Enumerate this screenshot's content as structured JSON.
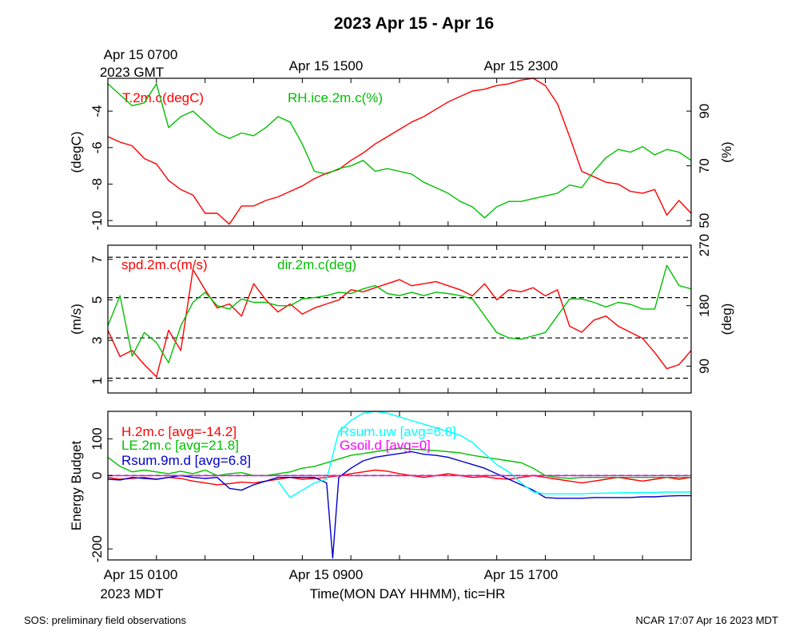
{
  "title": "2023 Apr 15 - Apr 16",
  "top_axis": {
    "ticks": [
      "Apr 15 0700",
      "Apr 15 1500",
      "Apr 15 2300"
    ],
    "timezone": "2023 GMT"
  },
  "bottom_axis": {
    "ticks": [
      "Apr 15 0100",
      "Apr 15 0900",
      "Apr 15 1700"
    ],
    "timezone": "2023 MDT",
    "label": "Time(MON DAY HHMM), tic=HR"
  },
  "footer": {
    "left": "SOS: preliminary field observations",
    "right": "NCAR 17:07 Apr 16 2023 MDT"
  },
  "colors": {
    "red": "#ff0000",
    "green": "#00c000",
    "blue": "#0000cc",
    "cyan": "#00ffff",
    "magenta": "#ff00ff"
  },
  "chart_data": [
    {
      "type": "line",
      "x_range_hours_mdt": [
        0,
        24
      ],
      "left_axis": {
        "label": "(degC)",
        "range": [
          -10.3,
          -2.2
        ],
        "ticks": [
          -10,
          -8,
          -6,
          -4
        ]
      },
      "right_axis": {
        "label": "(%)",
        "range": [
          48,
          102
        ],
        "ticks": [
          50,
          70,
          90
        ]
      },
      "series": [
        {
          "name": "T.2m.c(degC)",
          "color": "#ff0000",
          "axis": "left",
          "x": [
            0,
            0.5,
            1,
            1.5,
            2,
            2.5,
            3,
            3.5,
            4,
            4.5,
            5,
            5.5,
            6,
            6.5,
            7,
            7.5,
            8,
            8.5,
            9,
            9.5,
            10,
            10.5,
            11,
            11.5,
            12,
            12.5,
            13,
            13.5,
            14,
            14.5,
            15,
            15.5,
            16,
            16.5,
            17,
            17.5,
            18,
            18.5,
            19,
            19.5,
            20,
            20.5,
            21,
            21.5,
            22,
            22.5,
            23,
            23.5,
            24
          ],
          "values": [
            -5.4,
            -5.7,
            -5.9,
            -6.6,
            -6.9,
            -7.8,
            -8.3,
            -8.6,
            -9.6,
            -9.6,
            -10.2,
            -9.2,
            -9.2,
            -8.9,
            -8.7,
            -8.4,
            -8.1,
            -7.7,
            -7.4,
            -7.2,
            -6.7,
            -6.3,
            -5.8,
            -5.4,
            -5,
            -4.6,
            -4.3,
            -3.9,
            -3.5,
            -3.2,
            -2.9,
            -2.8,
            -2.6,
            -2.5,
            -2.3,
            -2.2,
            -2.6,
            -3.6,
            -5.4,
            -7.3,
            -7.6,
            -7.9,
            -8,
            -8.4,
            -8.5,
            -8.3,
            -9.7,
            -8.9,
            -9.6
          ]
        },
        {
          "name": "RH.ice.2m.c(%)",
          "color": "#00c000",
          "axis": "right",
          "x": [
            0,
            0.5,
            1,
            1.5,
            2,
            2.5,
            3,
            3.5,
            4,
            4.5,
            5,
            5.5,
            6,
            6.5,
            7,
            7.5,
            8,
            8.5,
            9,
            9.5,
            10,
            10.5,
            11,
            11.5,
            12,
            12.5,
            13,
            13.5,
            14,
            14.5,
            15,
            15.5,
            16,
            16.5,
            17,
            17.5,
            18,
            18.5,
            19,
            19.5,
            20,
            20.5,
            21,
            21.5,
            22,
            22.5,
            23,
            23.5,
            24
          ],
          "values": [
            100,
            96,
            92,
            93,
            100,
            84,
            88,
            90,
            86,
            82,
            80,
            82,
            81,
            84,
            88,
            86,
            78,
            68,
            67,
            69,
            70,
            72,
            68,
            69,
            68,
            67,
            64,
            62,
            60,
            57,
            55,
            51,
            55,
            57,
            57,
            58,
            59,
            60,
            63,
            62,
            68,
            73,
            76,
            75,
            77,
            74,
            76,
            75,
            72
          ]
        }
      ]
    },
    {
      "type": "line",
      "x_range_hours_mdt": [
        0,
        24
      ],
      "left_axis": {
        "label": "(m/s)",
        "range": [
          0.4,
          7.7
        ],
        "ticks": [
          1,
          3,
          5,
          7
        ]
      },
      "right_axis": {
        "label": "(deg)",
        "range": [
          50,
          270
        ],
        "ticks": [
          90,
          180,
          270
        ]
      },
      "reference_lines_right_axis": [
        72,
        132,
        192,
        252
      ],
      "series": [
        {
          "name": "spd.2m.c(m/s)",
          "color": "#ff0000",
          "axis": "left",
          "x": [
            0,
            0.5,
            1,
            1.5,
            2,
            2.5,
            3,
            3.5,
            4,
            4.5,
            5,
            5.5,
            6,
            6.5,
            7,
            7.5,
            8,
            8.5,
            9,
            9.5,
            10,
            10.5,
            11,
            11.5,
            12,
            12.5,
            13,
            13.5,
            14,
            14.5,
            15,
            15.5,
            16,
            16.5,
            17,
            17.5,
            18,
            18.5,
            19,
            19.5,
            20,
            20.5,
            21,
            21.5,
            22,
            22.5,
            23,
            23.5,
            24
          ],
          "values": [
            3.5,
            2.2,
            2.5,
            1.8,
            1.2,
            3.5,
            2.5,
            6.5,
            5.5,
            4.6,
            4.8,
            4.2,
            5.8,
            5,
            4.4,
            4.8,
            4.3,
            4.6,
            4.8,
            5,
            5.5,
            5.4,
            5.6,
            5.8,
            6,
            5.7,
            5.8,
            5.9,
            5.7,
            5.5,
            5.2,
            5.8,
            5,
            5.5,
            5.4,
            5.6,
            5.2,
            5.5,
            3.7,
            3.4,
            4,
            4.2,
            3.7,
            3.4,
            3.1,
            2.4,
            1.6,
            1.8,
            2.5
          ]
        },
        {
          "name": "dir.2m.c(deg)",
          "color": "#00c000",
          "axis": "right",
          "x": [
            0,
            0.5,
            1,
            1.5,
            2,
            2.5,
            3,
            3.5,
            4,
            4.5,
            5,
            5.5,
            6,
            6.5,
            7,
            7.5,
            8,
            8.5,
            9,
            9.5,
            10,
            10.5,
            11,
            11.5,
            12,
            12.5,
            13,
            13.5,
            14,
            14.5,
            15,
            15.5,
            16,
            16.5,
            17,
            17.5,
            18,
            18.5,
            19,
            19.5,
            20,
            20.5,
            21,
            21.5,
            22,
            22.5,
            23,
            23.5,
            24
          ],
          "values": [
            150,
            195,
            105,
            140,
            125,
            95,
            150,
            185,
            200,
            180,
            175,
            190,
            185,
            185,
            180,
            180,
            190,
            192,
            195,
            200,
            198,
            205,
            210,
            198,
            195,
            200,
            195,
            200,
            198,
            195,
            190,
            165,
            140,
            132,
            130,
            135,
            140,
            165,
            190,
            190,
            185,
            178,
            185,
            182,
            175,
            175,
            240,
            210,
            205
          ]
        }
      ]
    },
    {
      "type": "line",
      "x_range_hours_mdt": [
        0,
        24
      ],
      "left_axis": {
        "label": "Energy Budget",
        "range": [
          -230,
          175
        ],
        "ticks": [
          -200,
          0,
          100
        ]
      },
      "reference_lines_left_axis": [
        0
      ],
      "series": [
        {
          "name": "H.2m.c [avg=-14.2]",
          "color": "#ff0000",
          "x": [
            0,
            0.5,
            1,
            1.5,
            2,
            2.5,
            3,
            3.5,
            4,
            4.5,
            5,
            5.5,
            6,
            6.5,
            7,
            7.5,
            8,
            8.5,
            9,
            9.5,
            10,
            10.5,
            11,
            11.5,
            12,
            12.5,
            13,
            13.5,
            14,
            14.5,
            15,
            15.5,
            16,
            16.5,
            17,
            17.5,
            18,
            18.5,
            19,
            19.5,
            20,
            20.5,
            21,
            21.5,
            22,
            22.5,
            23,
            23.5,
            24
          ],
          "values": [
            -5,
            -10,
            -8,
            -5,
            -10,
            -5,
            -8,
            -15,
            -20,
            -25,
            -22,
            -18,
            -20,
            -15,
            -10,
            -5,
            -10,
            -8,
            -5,
            0,
            5,
            10,
            15,
            12,
            5,
            0,
            -5,
            0,
            5,
            0,
            -5,
            -3,
            -8,
            -10,
            -5,
            0,
            -5,
            -10,
            -15,
            -20,
            -15,
            -10,
            -5,
            -10,
            -15,
            -10,
            -5,
            -10,
            -5
          ]
        },
        {
          "name": "LE.2m.c [avg=21.8]",
          "color": "#00c000",
          "x": [
            0,
            0.5,
            1,
            1.5,
            2,
            2.5,
            3,
            3.5,
            4,
            4.5,
            5,
            5.5,
            6,
            6.5,
            7,
            7.5,
            8,
            8.5,
            9,
            9.5,
            10,
            10.5,
            11,
            11.5,
            12,
            12.5,
            13,
            13.5,
            14,
            14.5,
            15,
            15.5,
            16,
            16.5,
            17,
            17.5,
            18,
            18.5,
            19,
            19.5,
            20,
            20.5,
            21,
            21.5,
            22,
            22.5,
            23,
            23.5,
            24
          ],
          "values": [
            50,
            25,
            10,
            15,
            10,
            5,
            12,
            5,
            15,
            0,
            5,
            8,
            0,
            0,
            5,
            10,
            20,
            25,
            35,
            45,
            55,
            60,
            65,
            70,
            75,
            72,
            70,
            68,
            65,
            62,
            55,
            50,
            45,
            40,
            35,
            20,
            0,
            -5,
            -8,
            -5,
            -5,
            -5,
            -5,
            -5,
            -5,
            -5,
            -5,
            -5,
            -5
          ]
        },
        {
          "name": "Rsum.9m.d [avg=6.8]",
          "color": "#0000cc",
          "x": [
            0,
            0.5,
            1,
            1.5,
            2,
            2.5,
            3,
            3.5,
            4,
            4.5,
            5,
            5.5,
            6,
            6.5,
            7,
            7.5,
            8,
            8.5,
            9,
            9.25,
            9.5,
            10,
            10.5,
            11,
            11.5,
            12,
            12.5,
            13,
            13.5,
            14,
            14.5,
            15,
            15.5,
            16,
            16.5,
            17,
            17.5,
            18,
            18.5,
            19,
            19.5,
            20,
            20.5,
            21,
            21.5,
            22,
            22.5,
            23,
            23.5,
            24
          ],
          "values": [
            -10,
            -12,
            -5,
            -8,
            -10,
            -5,
            0,
            -5,
            -8,
            -5,
            -35,
            -40,
            -25,
            -15,
            -5,
            -5,
            -5,
            -5,
            -20,
            -225,
            -5,
            20,
            40,
            50,
            55,
            60,
            65,
            58,
            55,
            50,
            40,
            30,
            20,
            5,
            -10,
            -25,
            -40,
            -60,
            -62,
            -62,
            -62,
            -60,
            -60,
            -60,
            -60,
            -58,
            -58,
            -56,
            -55,
            -55
          ]
        },
        {
          "name": "Rsum.uw [avg=6.8]",
          "color": "#00ffff",
          "x": [
            7,
            7.5,
            8,
            8.5,
            9,
            9.5,
            10,
            10.5,
            11,
            11.5,
            12,
            12.5,
            13,
            13.5,
            14,
            14.5,
            15,
            15.5,
            16,
            16.5,
            17,
            17.5,
            18,
            18.5,
            19,
            19.5,
            20,
            20.5,
            21,
            21.5,
            22,
            22.5,
            23,
            23.5,
            24
          ],
          "values": [
            -15,
            -60,
            -40,
            -20,
            -10,
            120,
            150,
            170,
            175,
            170,
            160,
            150,
            140,
            130,
            120,
            110,
            90,
            60,
            30,
            10,
            -20,
            -45,
            -50,
            -50,
            -50,
            -50,
            -48,
            -48,
            -47,
            -47,
            -46,
            -46,
            -45,
            -45,
            -45
          ]
        },
        {
          "name": "Gsoil.d [avg=0]",
          "color": "#ff00ff",
          "x": [
            0,
            24
          ],
          "values": [
            0,
            0
          ]
        }
      ]
    }
  ]
}
